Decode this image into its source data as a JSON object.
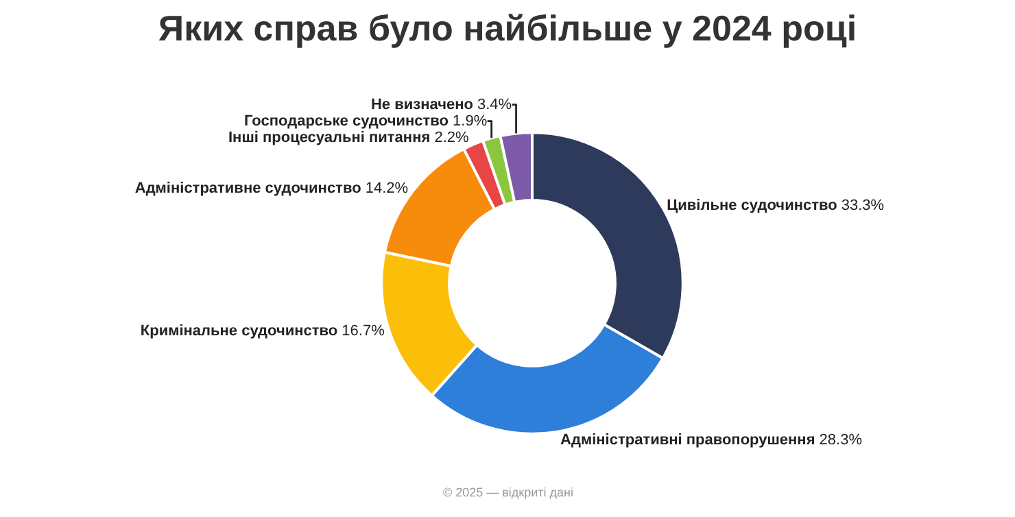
{
  "chart_data": {
    "type": "donut",
    "title": "Яких справ було найбільше у 2024 році",
    "categories": [
      "Цивільне судочинство",
      "Адміністративні правопорушення",
      "Кримінальне судочинство",
      "Адміністративне судочинство",
      "Інші процесуальні питання",
      "Господарське судочинство",
      "Не визначено"
    ],
    "values": [
      33.3,
      28.3,
      16.7,
      14.2,
      2.2,
      1.9,
      3.4
    ],
    "value_labels": [
      "33.3%",
      "28.3%",
      "16.7%",
      "14.2%",
      "2.2%",
      "1.9%",
      "3.4%"
    ],
    "colors": [
      "#2d3a5c",
      "#2e7fd9",
      "#fbbf0a",
      "#f78c0c",
      "#e84545",
      "#8cc63f",
      "#7e5ba8"
    ],
    "annotations": [
      "© 2025 — відкриті дані"
    ],
    "legend": false
  }
}
